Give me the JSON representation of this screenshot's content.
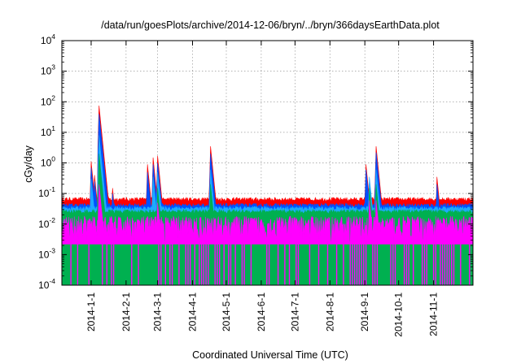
{
  "chart_data": {
    "type": "area",
    "title": "/data/run/goesPlots/archive/2014-12-06/bryn/../bryn/366daysEarthData.plot",
    "xlabel": "Coordinated Universal Time (UTC)",
    "ylabel": "cGy/day",
    "xlim": [
      "2013-12-06",
      "2014-12-06"
    ],
    "ylim": [
      0.0001,
      10000
    ],
    "log_y": true,
    "grid": true,
    "legend": "none",
    "x_ticks": [
      "2014-1-1",
      "2014-2-1",
      "2014-3-1",
      "2014-4-1",
      "2014-5-1",
      "2014-6-1",
      "2014-7-1",
      "2014-8-1",
      "2014-9-1",
      "2014-10-1",
      "2014-11-1"
    ],
    "y_ticks": [
      {
        "base": "10",
        "exp": "-4",
        "value": 0.0001
      },
      {
        "base": "10",
        "exp": "-3",
        "value": 0.001
      },
      {
        "base": "10",
        "exp": "-2",
        "value": 0.01
      },
      {
        "base": "10",
        "exp": "-1",
        "value": 0.1
      },
      {
        "base": "10",
        "exp": "0",
        "value": 1
      },
      {
        "base": "10",
        "exp": "1",
        "value": 10
      },
      {
        "base": "10",
        "exp": "2",
        "value": 100
      },
      {
        "base": "10",
        "exp": "3",
        "value": 1000
      },
      {
        "base": "10",
        "exp": "4",
        "value": 10000
      }
    ],
    "series": [
      {
        "color": "#ff0000",
        "baseline": 0.055,
        "events": [
          [
            "2014-01-01",
            1.1
          ],
          [
            "2014-01-04",
            0.4
          ],
          [
            "2014-01-08",
            75
          ],
          [
            "2014-01-20",
            0.15
          ],
          [
            "2014-02-20",
            0.9
          ],
          [
            "2014-02-25",
            1.5
          ],
          [
            "2014-03-01",
            1.7
          ],
          [
            "2014-04-17",
            3.5
          ],
          [
            "2014-09-02",
            0.9
          ],
          [
            "2014-09-11",
            3.5
          ],
          [
            "2014-11-04",
            0.35
          ]
        ]
      },
      {
        "color": "#0050ff",
        "baseline": 0.035,
        "events": [
          [
            "2014-01-01",
            0.7
          ],
          [
            "2014-01-04",
            0.25
          ],
          [
            "2014-01-08",
            40
          ],
          [
            "2014-01-20",
            0.1
          ],
          [
            "2014-02-20",
            0.5
          ],
          [
            "2014-02-25",
            0.9
          ],
          [
            "2014-03-01",
            1.0
          ],
          [
            "2014-04-17",
            2.0
          ],
          [
            "2014-09-02",
            0.6
          ],
          [
            "2014-09-11",
            2.2
          ],
          [
            "2014-11-04",
            0.2
          ]
        ]
      },
      {
        "color": "#1eaaff",
        "baseline": 0.028,
        "events": [
          [
            "2014-01-01",
            0.3
          ],
          [
            "2014-01-08",
            8
          ],
          [
            "2014-02-25",
            0.35
          ],
          [
            "2014-03-01",
            0.5
          ],
          [
            "2014-04-17",
            0.6
          ],
          [
            "2014-09-05",
            0.35
          ],
          [
            "2014-09-11",
            0.6
          ]
        ]
      },
      {
        "color": "#00b050",
        "baseline": 0.022,
        "events": [
          [
            "2014-01-08",
            2
          ],
          [
            "2014-03-01",
            0.15
          ],
          [
            "2014-04-17",
            0.2
          ],
          [
            "2014-09-05",
            0.15
          ],
          [
            "2014-09-11",
            0.2
          ]
        ]
      },
      {
        "color": "#ff00ff",
        "baseline": 0.0022,
        "top": 0.018,
        "events": [
          [
            "2014-01-08",
            0.2
          ],
          [
            "2014-03-01",
            0.05
          ],
          [
            "2014-09-05",
            0.06
          ],
          [
            "2014-09-11",
            0.06
          ]
        ]
      }
    ]
  }
}
